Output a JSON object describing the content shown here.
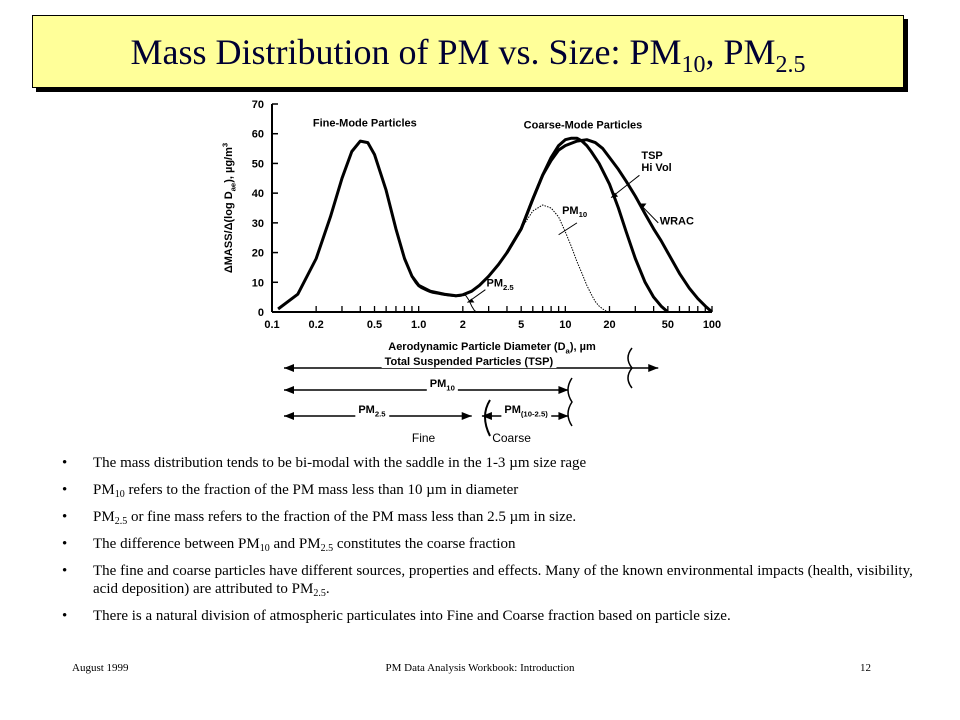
{
  "slide": {
    "title": {
      "main": "Mass Distribution of PM vs. Size: PM",
      "sub1": "10",
      "sep": ", PM",
      "sub2": "2.5"
    },
    "footer": {
      "left": "August 1999",
      "center": "PM Data Analysis Workbook: Introduction",
      "right": "12"
    }
  },
  "bullets": [
    {
      "id": "b1",
      "parts": [
        {
          "t": "The mass distribution tends to be bi-modal with the saddle in the 1-3 "
        },
        {
          "t": "µ",
          "sym": true
        },
        {
          "t": "m size rage"
        }
      ]
    },
    {
      "id": "b2",
      "parts": [
        {
          "t": "PM"
        },
        {
          "t": "10",
          "sub": true
        },
        {
          "t": " refers to the fraction of the PM mass less than 10 "
        },
        {
          "t": "µ",
          "sym": true
        },
        {
          "t": "m in diameter"
        }
      ]
    },
    {
      "id": "b3",
      "parts": [
        {
          "t": "PM"
        },
        {
          "t": "2.5",
          "sub": true
        },
        {
          "t": " or fine mass refers to the fraction of the PM mass less than 2.5 "
        },
        {
          "t": "µ",
          "sym": true
        },
        {
          "t": "m in size."
        }
      ]
    },
    {
      "id": "b4",
      "parts": [
        {
          "t": "The difference between PM"
        },
        {
          "t": "10",
          "sub": true
        },
        {
          "t": " and PM"
        },
        {
          "t": "2.5",
          "sub": true
        },
        {
          "t": " constitutes the coarse fraction"
        }
      ]
    },
    {
      "id": "b5",
      "parts": [
        {
          "t": "The fine and coarse particles have different sources, properties and effects. Many of the known environmental impacts (health, visibility, acid deposition) are attributed to PM"
        },
        {
          "t": "2.5",
          "sub": true
        },
        {
          "t": "."
        }
      ]
    },
    {
      "id": "b6",
      "parts": [
        {
          "t": "There is a natural division of atmospheric particulates into Fine and Coarse fraction based on particle size."
        }
      ]
    }
  ],
  "chart_data": {
    "type": "line",
    "xscale": "log",
    "xlim": [
      0.1,
      100
    ],
    "ylim": [
      0,
      70
    ],
    "xticks": [
      "0.1",
      "0.2",
      "0.5",
      "1.0",
      "2",
      "5",
      "10",
      "20",
      "50",
      "100"
    ],
    "xtick_values": [
      0.1,
      0.2,
      0.5,
      1.0,
      2,
      5,
      10,
      20,
      50,
      100
    ],
    "yticks": [
      0,
      10,
      20,
      30,
      40,
      50,
      60,
      70
    ],
    "xlabel": "Aerodynamic Particle Diameter (D",
    "xlabel_sub": "a",
    "xlabel_tail": "), µm",
    "ylabel": "ΔMASS/Δ(log D",
    "ylabel_sub": "ae",
    "ylabel_tail": "), µg/m",
    "ylabel_sup": "3",
    "mode_labels": {
      "fine": "Fine-Mode Particles",
      "coarse": "Coarse-Mode Particles"
    },
    "series": [
      {
        "name": "TSP Hi Vol",
        "style": "thick",
        "x": [
          0.11,
          0.15,
          0.2,
          0.25,
          0.3,
          0.35,
          0.4,
          0.45,
          0.5,
          0.6,
          0.7,
          0.8,
          0.9,
          1.0,
          1.2,
          1.5,
          1.8,
          2.0,
          2.3,
          2.6,
          3,
          3.5,
          4,
          5,
          6,
          7,
          8,
          9,
          10,
          11,
          12,
          13,
          14,
          15,
          17,
          20,
          23,
          26,
          30,
          35,
          40,
          45,
          50
        ],
        "y": [
          1,
          6,
          18,
          32,
          45,
          54,
          57.5,
          57,
          53,
          41,
          28,
          18,
          12,
          9,
          7,
          6,
          5.5,
          5.8,
          7,
          9,
          12,
          16,
          20,
          28,
          38,
          46,
          52,
          56,
          58,
          58.5,
          58.5,
          57.5,
          56,
          54,
          50,
          43,
          35,
          27,
          18,
          10,
          5,
          2,
          0
        ]
      },
      {
        "name": "WRAC",
        "style": "thick",
        "x": [
          4,
          5,
          6,
          7,
          8,
          9,
          10,
          12,
          14,
          16,
          18,
          20,
          23,
          26,
          30,
          35,
          40,
          45,
          50,
          60,
          70,
          80,
          90,
          100
        ],
        "y": [
          20,
          28,
          38,
          46,
          51,
          54.5,
          56,
          57.5,
          58,
          57,
          55,
          52,
          48,
          44,
          39,
          33,
          28,
          24,
          20,
          13,
          8,
          4.5,
          2,
          0
        ]
      },
      {
        "name": "PM10",
        "style": "thin",
        "x": [
          2.6,
          3,
          3.5,
          4,
          5,
          6,
          7,
          8,
          9,
          10,
          11,
          12,
          13,
          14,
          15,
          16,
          17,
          18,
          19,
          20
        ],
        "y": [
          9,
          12,
          16,
          20,
          28,
          34,
          36,
          35,
          32,
          27,
          22,
          17,
          13,
          9,
          6,
          3.5,
          2,
          1,
          0.3,
          0
        ]
      },
      {
        "name": "PM2.5",
        "style": "thin",
        "x": [
          0.9,
          1.0,
          1.2,
          1.5,
          1.8,
          2.0,
          2.1,
          2.2,
          2.3,
          2.4,
          2.5
        ],
        "y": [
          12,
          9,
          7,
          6,
          5.5,
          5.8,
          5.5,
          4,
          2,
          0.5,
          0
        ]
      }
    ],
    "curve_labels": [
      {
        "id": "tsp",
        "lines": [
          "TSP",
          "Hi Vol"
        ]
      },
      {
        "id": "pm10",
        "text": "PM",
        "sub": "10"
      },
      {
        "id": "wrac",
        "text": "WRAC"
      },
      {
        "id": "pm25",
        "text": "PM",
        "sub": "2.5"
      }
    ],
    "size_ranges": [
      {
        "id": "tsp",
        "label": "Total Suspended Particles (TSP)",
        "from": 0.1,
        "to": 45
      },
      {
        "id": "pm10",
        "label": "PM",
        "sub": "10",
        "from": 0.1,
        "to": 10
      },
      {
        "id": "pm25",
        "label": "PM",
        "sub": "2.5",
        "from": 0.1,
        "to": 2.5
      },
      {
        "id": "pmc",
        "label": "PM",
        "sub": "(10-2.5)",
        "from": 2.5,
        "to": 10
      }
    ],
    "fraction_labels": {
      "fine": "Fine",
      "coarse": "Coarse"
    }
  }
}
